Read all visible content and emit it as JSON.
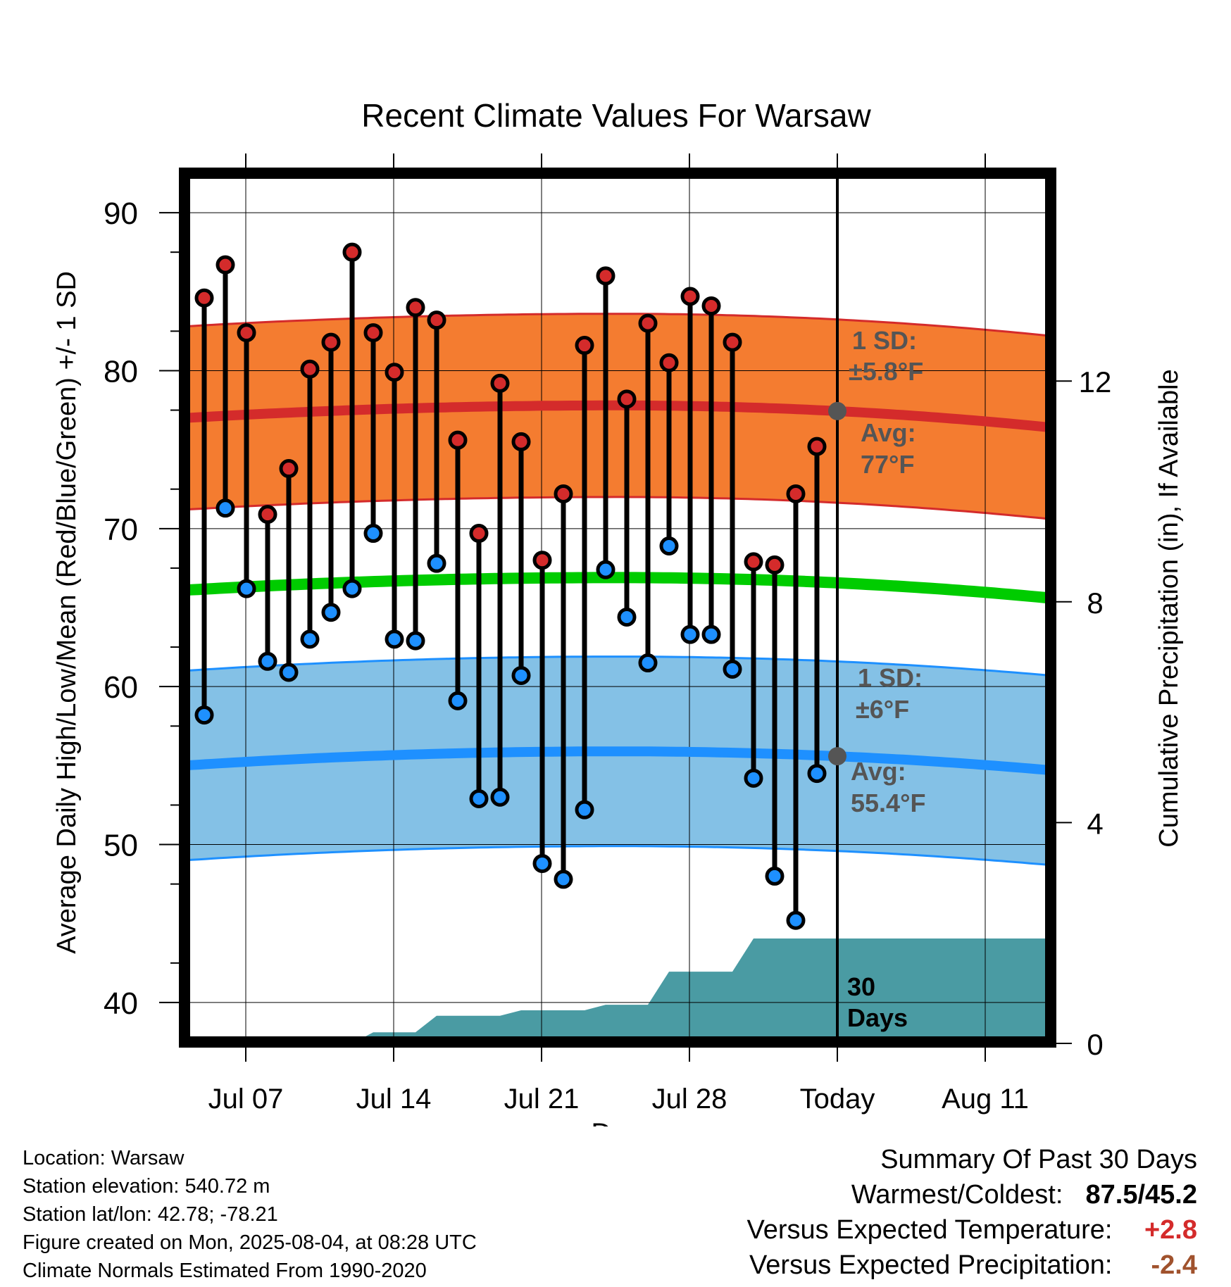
{
  "chart_data": {
    "type": "line",
    "title": "Recent Climate Values For Warsaw",
    "xlabel": "Day",
    "ylabel": "Average Daily High/Low/Mean (Red/Blue/Green) +/- 1 SD",
    "y2label": "Cumulative Precipitation (in), If Available",
    "ylim": [
      37.5,
      92.5
    ],
    "y2lim": [
      0,
      15
    ],
    "x_ticks": [
      "Jul 07",
      "Jul 14",
      "Jul 21",
      "Jul 28",
      "Today",
      "Aug 11"
    ],
    "y_ticks": [
      40,
      50,
      60,
      70,
      80,
      90
    ],
    "y2_ticks": [
      0,
      4,
      8,
      12
    ],
    "grid": true,
    "days": [
      "Jul 05",
      "Jul 06",
      "Jul 07",
      "Jul 08",
      "Jul 09",
      "Jul 10",
      "Jul 11",
      "Jul 12",
      "Jul 13",
      "Jul 14",
      "Jul 15",
      "Jul 16",
      "Jul 17",
      "Jul 18",
      "Jul 19",
      "Jul 20",
      "Jul 21",
      "Jul 22",
      "Jul 23",
      "Jul 24",
      "Jul 25",
      "Jul 26",
      "Jul 27",
      "Jul 28",
      "Jul 29",
      "Jul 30",
      "Jul 31",
      "Aug 01",
      "Aug 02",
      "Aug 03"
    ],
    "daily_high": [
      84.6,
      86.7,
      82.4,
      70.9,
      73.8,
      80.1,
      81.8,
      87.5,
      82.4,
      79.9,
      84.0,
      83.2,
      75.6,
      69.7,
      79.2,
      75.5,
      68.0,
      72.2,
      81.6,
      86.0,
      78.2,
      83.0,
      80.5,
      84.7,
      84.1,
      81.8,
      67.9,
      67.7,
      72.2,
      75.2
    ],
    "daily_low": [
      58.2,
      71.3,
      66.2,
      61.6,
      60.9,
      63.0,
      64.7,
      66.2,
      69.7,
      63.0,
      62.9,
      67.8,
      59.1,
      52.9,
      53.0,
      60.7,
      48.8,
      47.8,
      52.2,
      67.4,
      64.4,
      61.5,
      68.9,
      63.3,
      63.3,
      61.1,
      54.2,
      48.0,
      45.2,
      54.5
    ],
    "normal_high_avg": {
      "start": 77.0,
      "peak": 77.8,
      "end": 76.4
    },
    "normal_high_sd": 5.8,
    "normal_low_avg": {
      "start": 55.0,
      "peak": 55.9,
      "end": 54.7
    },
    "normal_low_sd": 6,
    "normal_mean": {
      "start": 66.1,
      "peak": 66.9,
      "end": 65.6
    },
    "cumulative_precip": [
      0,
      0,
      0,
      0,
      0,
      0,
      0,
      0,
      0.2,
      0.2,
      0.2,
      0.5,
      0.5,
      0.5,
      0.5,
      0.6,
      0.6,
      0.6,
      0.6,
      0.7,
      0.7,
      0.7,
      1.3,
      1.3,
      1.3,
      1.3,
      1.9,
      1.9,
      1.9,
      1.9
    ],
    "colors": {
      "high": "#d42b2b",
      "low": "#1e90ff",
      "mean": "#00cc00",
      "high_band": "#f47c30",
      "low_band": "#84c1e6",
      "precip": "#4a9ba3",
      "avg_marker": "#555555"
    },
    "annotations": {
      "high_sd_label": "1 SD:",
      "high_sd_value": "±5.8°F",
      "high_avg_label": "Avg:",
      "high_avg_value": "77°F",
      "low_sd_label": "1 SD:",
      "low_sd_value": "±6°F",
      "low_avg_label": "Avg:",
      "low_avg_value": "55.4°F",
      "days_number": "30",
      "days_word": "Days"
    }
  },
  "footer": {
    "location": "Location: Warsaw",
    "elevation": "Station elevation: 540.72 m",
    "latlon": "Station lat/lon: 42.78; -78.21",
    "created": "Figure created on Mon, 2025-08-04, at 08:28 UTC",
    "normals": "Climate Normals Estimated From 1990-2020"
  },
  "summary": {
    "title": "Summary Of Past 30 Days",
    "warm_cold_label": "Warmest/Coldest:",
    "warm_cold_value": "87.5/45.2",
    "temp_label": "Versus Expected Temperature:",
    "temp_value": "+2.8",
    "temp_color": "#d42b2b",
    "precip_label": "Versus Expected Precipitation:",
    "precip_value": "-2.4",
    "precip_color": "#a0522d"
  }
}
